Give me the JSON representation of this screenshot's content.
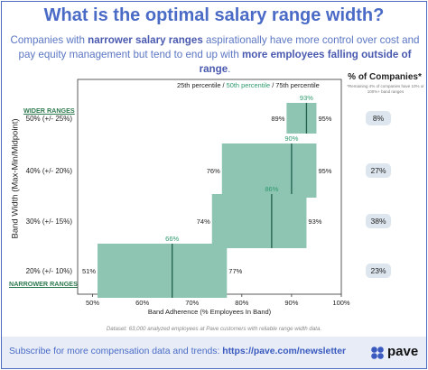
{
  "title": "What is the optimal salary range width?",
  "subtitle": {
    "p1": "Companies with ",
    "b1": "narrower salary ranges",
    "p2": " aspirationally have more control over cost and pay equity management but tend to end up with ",
    "b2": "more employees falling outside of range",
    "p3": "."
  },
  "legend": {
    "p25": "25th percentile / ",
    "p50": "50th percentile",
    "p75": " / 75th percentile"
  },
  "companies_column": {
    "header": "% of Companies*",
    "note": "*Remaining 4% of companies have 10% or 100%+ band ranges"
  },
  "range_tags": {
    "wider": "WIDER RANGES",
    "narrower": "NARROWER RANGES"
  },
  "chart_data": {
    "type": "box",
    "title": "What is the optimal salary range width?",
    "xlabel": "Band Adherence (% Employees In Band)",
    "ylabel": "Band Width (Max-Min/Midpoint)",
    "xlim": [
      47,
      100
    ],
    "xticks": [
      50,
      60,
      70,
      80,
      90,
      100
    ],
    "xtick_labels": [
      "50%",
      "60%",
      "70%",
      "80%",
      "90%",
      "100%"
    ],
    "grid": false,
    "color": "#8ec4b2",
    "median_color": "#1f5f4c",
    "series": [
      {
        "category": "50% (+/- 25%)",
        "p25": 89,
        "p50": 93,
        "p75": 95,
        "p25_label": "89%",
        "p50_label": "93%",
        "p75_label": "95%",
        "companies": "8%"
      },
      {
        "category": "40% (+/- 20%)",
        "p25": 76,
        "p50": 90,
        "p75": 95,
        "p25_label": "76%",
        "p50_label": "90%",
        "p75_label": "95%",
        "companies": "27%"
      },
      {
        "category": "30% (+/- 15%)",
        "p25": 74,
        "p50": 86,
        "p75": 93,
        "p25_label": "74%",
        "p50_label": "86%",
        "p75_label": "93%",
        "companies": "38%"
      },
      {
        "category": "20% (+/- 10%)",
        "p25": 51,
        "p50": 66,
        "p75": 77,
        "p25_label": "51%",
        "p50_label": "66%",
        "p75_label": "77%",
        "companies": "23%"
      }
    ]
  },
  "dataset_note": "Dataset: 63,000 analyzed employees at Pave customers with reliable range width data.",
  "footer": {
    "text": "Subscribe for more compensation data and trends: ",
    "link": "https://pave.com/newsletter",
    "brand": "pave"
  }
}
